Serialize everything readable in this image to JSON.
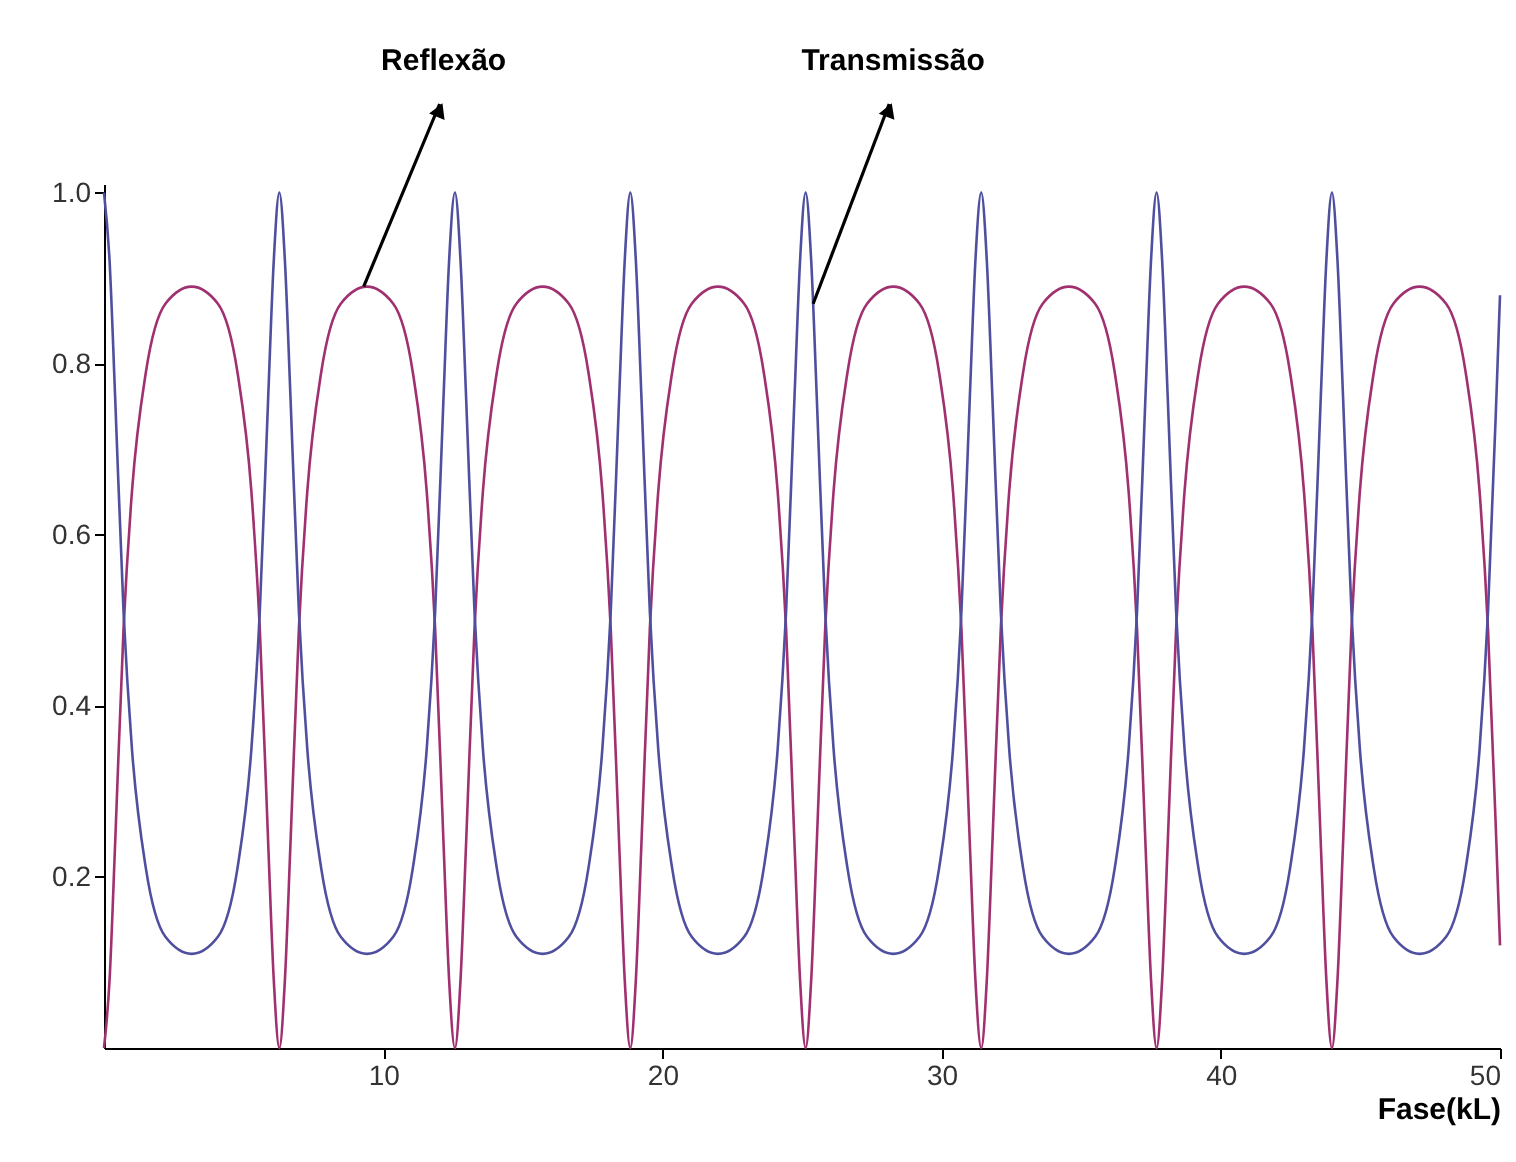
{
  "chart_data": {
    "type": "line",
    "xlabel": "Fase(kL)",
    "x": [
      0,
      0.2,
      0.4,
      0.7,
      1,
      1.5,
      2.2,
      3.14,
      4.08,
      4.78,
      5.28,
      5.58,
      5.88,
      6.08,
      6.28,
      6.48,
      6.68,
      6.98,
      7.28,
      7.78,
      8.48,
      9.42,
      10.36,
      11.06,
      11.56,
      11.86,
      12.16,
      12.36,
      12.57,
      12.77,
      12.97,
      13.27,
      13.57,
      14.07,
      14.77,
      15.71,
      16.65,
      17.35,
      17.85,
      18.15,
      18.45,
      18.65,
      18.85,
      19.05,
      19.25,
      19.55,
      19.85,
      20.35,
      21.05,
      21.99,
      22.93,
      23.63,
      24.13,
      24.43,
      24.73,
      24.93,
      25.13,
      25.33,
      25.53,
      25.83,
      26.13,
      26.63,
      27.33,
      28.27,
      29.21,
      29.91,
      30.41,
      30.71,
      31.01,
      31.21,
      31.42,
      31.62,
      31.82,
      32.12,
      32.42,
      32.92,
      33.62,
      34.56,
      35.5,
      36.2,
      36.7,
      37,
      37.3,
      37.5,
      37.7,
      37.9,
      38.1,
      38.4,
      38.7,
      39.2,
      39.9,
      40.84,
      41.78,
      42.48,
      42.98,
      43.28,
      43.58,
      43.78,
      43.98,
      44.18,
      44.38,
      44.68,
      44.98,
      45.48,
      46.18,
      47.12,
      48.07,
      48.77,
      49.27,
      49.57,
      49.87,
      50
    ],
    "series": [
      {
        "color": "#a0306f",
        "values": [
          0,
          0.08,
          0.24,
          0.49,
          0.65,
          0.79,
          0.87,
          0.89,
          0.87,
          0.79,
          0.65,
          0.49,
          0.24,
          0.08,
          0,
          0.08,
          0.24,
          0.49,
          0.65,
          0.79,
          0.87,
          0.89,
          0.87,
          0.79,
          0.65,
          0.49,
          0.24,
          0.08,
          0,
          0.08,
          0.24,
          0.49,
          0.65,
          0.79,
          0.87,
          0.89,
          0.87,
          0.79,
          0.65,
          0.49,
          0.24,
          0.08,
          0,
          0.08,
          0.24,
          0.49,
          0.65,
          0.79,
          0.87,
          0.89,
          0.87,
          0.79,
          0.65,
          0.49,
          0.24,
          0.08,
          0,
          0.08,
          0.24,
          0.49,
          0.65,
          0.79,
          0.87,
          0.89,
          0.87,
          0.79,
          0.65,
          0.49,
          0.24,
          0.08,
          0,
          0.08,
          0.24,
          0.49,
          0.65,
          0.79,
          0.87,
          0.89,
          0.87,
          0.79,
          0.65,
          0.49,
          0.24,
          0.08,
          0,
          0.08,
          0.24,
          0.49,
          0.65,
          0.79,
          0.87,
          0.89,
          0.87,
          0.79,
          0.65,
          0.49,
          0.24,
          0.08,
          0,
          0.08,
          0.24,
          0.49,
          0.65,
          0.79,
          0.87,
          0.89,
          0.87,
          0.79,
          0.65,
          0.49,
          0.24,
          0.12
        ]
      },
      {
        "color": "#4f4f9f",
        "values": [
          1,
          0.92,
          0.76,
          0.51,
          0.35,
          0.21,
          0.13,
          0.11,
          0.13,
          0.21,
          0.35,
          0.51,
          0.76,
          0.92,
          1,
          0.92,
          0.76,
          0.51,
          0.35,
          0.21,
          0.13,
          0.11,
          0.13,
          0.21,
          0.35,
          0.51,
          0.76,
          0.92,
          1,
          0.92,
          0.76,
          0.51,
          0.35,
          0.21,
          0.13,
          0.11,
          0.13,
          0.21,
          0.35,
          0.51,
          0.76,
          0.92,
          1,
          0.92,
          0.76,
          0.51,
          0.35,
          0.21,
          0.13,
          0.11,
          0.13,
          0.21,
          0.35,
          0.51,
          0.76,
          0.92,
          1,
          0.92,
          0.76,
          0.51,
          0.35,
          0.21,
          0.13,
          0.11,
          0.13,
          0.21,
          0.35,
          0.51,
          0.76,
          0.92,
          1,
          0.92,
          0.76,
          0.51,
          0.35,
          0.21,
          0.13,
          0.11,
          0.13,
          0.21,
          0.35,
          0.51,
          0.76,
          0.92,
          1,
          0.92,
          0.76,
          0.51,
          0.35,
          0.21,
          0.13,
          0.11,
          0.13,
          0.21,
          0.35,
          0.51,
          0.76,
          0.92,
          1,
          0.92,
          0.76,
          0.51,
          0.35,
          0.21,
          0.13,
          0.11,
          0.13,
          0.21,
          0.35,
          0.51,
          0.76,
          0.88
        ]
      }
    ],
    "annotations": [
      {
        "text": "Reflexão",
        "x": 9.3,
        "y": 0.89
      },
      {
        "text": "Transmissão",
        "x": 25.4,
        "y": 0.87
      }
    ],
    "xlim": [
      0,
      50
    ],
    "ylim": [
      0,
      1.01
    ],
    "xticks": [
      10,
      20,
      30,
      40,
      50
    ],
    "yticks": [
      0.2,
      0.4,
      0.6,
      0.8,
      {
        "value": 1,
        "label": "1.0"
      }
    ],
    "grid": false,
    "marker": "none",
    "line_style": "solid"
  }
}
